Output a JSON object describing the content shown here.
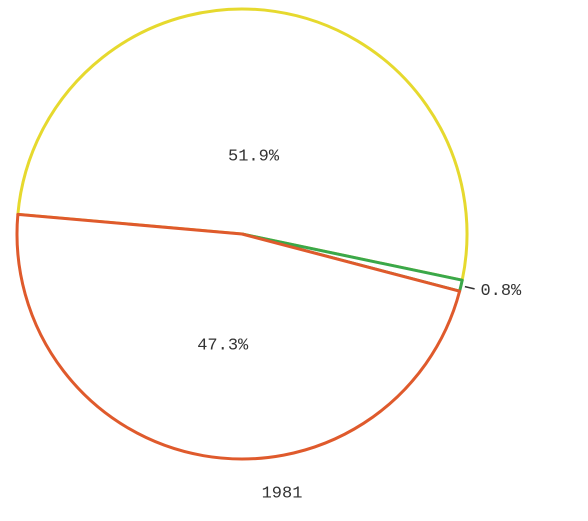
{
  "chart_data": {
    "type": "pie",
    "title": "1981",
    "values": [
      51.9,
      0.8,
      47.3
    ],
    "value_labels": [
      "51.9%",
      "0.8%",
      "47.3%"
    ],
    "colors": [
      "#e6d92e",
      "#3aa84a",
      "#df5a2c"
    ]
  }
}
